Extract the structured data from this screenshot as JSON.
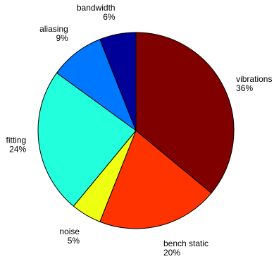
{
  "chart_data": {
    "type": "pie",
    "title": "",
    "slices": [
      {
        "label": "vibrations",
        "value": 36,
        "display": "36%",
        "color": "#800000"
      },
      {
        "label": "bench static",
        "value": 20,
        "display": "20%",
        "color": "#ff3300"
      },
      {
        "label": "noise",
        "value": 5,
        "display": "5%",
        "color": "#eeff11"
      },
      {
        "label": "fitting",
        "value": 24,
        "display": "24%",
        "color": "#22ffdd"
      },
      {
        "label": "aliasing",
        "value": 9,
        "display": "9%",
        "color": "#0077ff"
      },
      {
        "label": "bandwidth",
        "value": 6,
        "display": "6%",
        "color": "#000099"
      }
    ],
    "start_angle_deg": 0,
    "direction": "clockwise",
    "legend": "none"
  }
}
